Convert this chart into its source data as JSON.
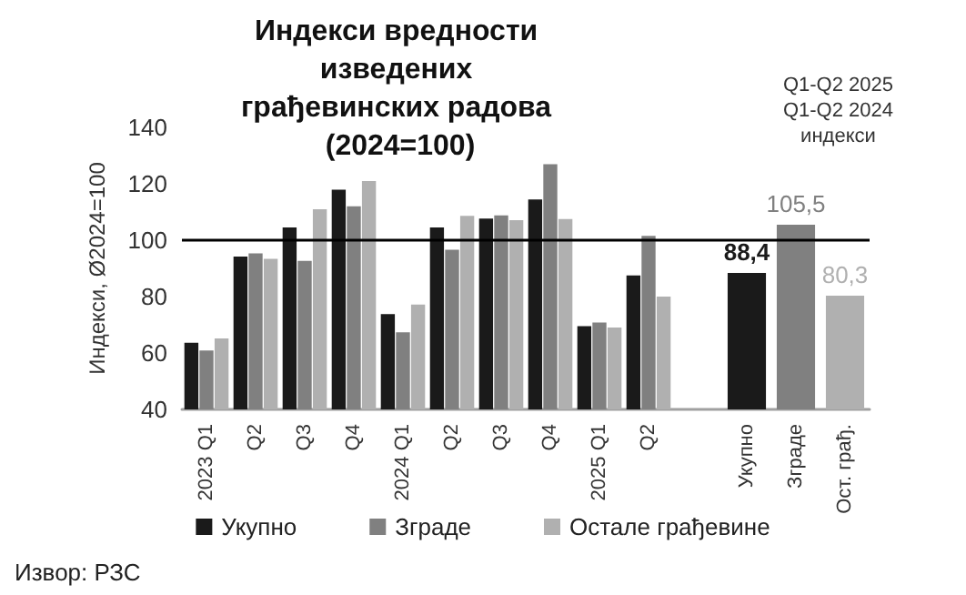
{
  "chart_data": {
    "type": "bar",
    "title": "Индекси вредности изведених грађевинских радова (2024=100)",
    "ylabel": "Индекси, Ø2024=100",
    "categories": [
      "2023 Q1",
      "Q2",
      "Q3",
      "Q4",
      "2024 Q1",
      "Q2",
      "Q3",
      "Q4",
      "2025 Q1",
      "Q2",
      null,
      "Укупно",
      "Зграде",
      "Ост. грађ."
    ],
    "series": [
      {
        "name": "Укупно",
        "color": "#1a1a1a",
        "values": [
          63.6,
          94.2,
          104.5,
          117.9,
          73.8,
          104.5,
          107.7,
          114.4,
          69.5,
          87.5,
          null,
          null,
          null,
          null
        ]
      },
      {
        "name": "Зграде",
        "color": "#808080",
        "values": [
          60.9,
          95.3,
          92.7,
          112,
          67.3,
          96.6,
          108.8,
          126.9,
          70.8,
          101.5,
          null,
          null,
          null,
          null
        ]
      },
      {
        "name": "Остале грађевине",
        "color": "#b0b0b0",
        "values": [
          65.2,
          93.4,
          111,
          121,
          77.2,
          108.6,
          107.1,
          107.5,
          69,
          80,
          null,
          null,
          null,
          null
        ]
      },
      {
        "colors": [
          null,
          null,
          null,
          null,
          null,
          null,
          null,
          null,
          null,
          null,
          null,
          "#1a1a1a",
          "#808080",
          "#b0b0b0"
        ],
        "values": [
          null,
          null,
          null,
          null,
          null,
          null,
          null,
          null,
          null,
          null,
          null,
          88.4,
          105.5,
          80.3
        ],
        "value_labels": [
          null,
          null,
          null,
          null,
          null,
          null,
          null,
          null,
          null,
          null,
          null,
          "88,4",
          "105,5",
          "80,3"
        ]
      }
    ],
    "ylim": [
      40,
      140
    ],
    "yticks": [
      40,
      60,
      80,
      100,
      120,
      140
    ],
    "grid": false,
    "legend": "bottom",
    "ref_lines": [
      {
        "axis": "y",
        "value": 100,
        "color": "#000000"
      }
    ],
    "annotations": [
      "Q1-Q2 2025\nQ1-Q2 2024\nиндекси",
      "Извор: РЗС"
    ]
  }
}
